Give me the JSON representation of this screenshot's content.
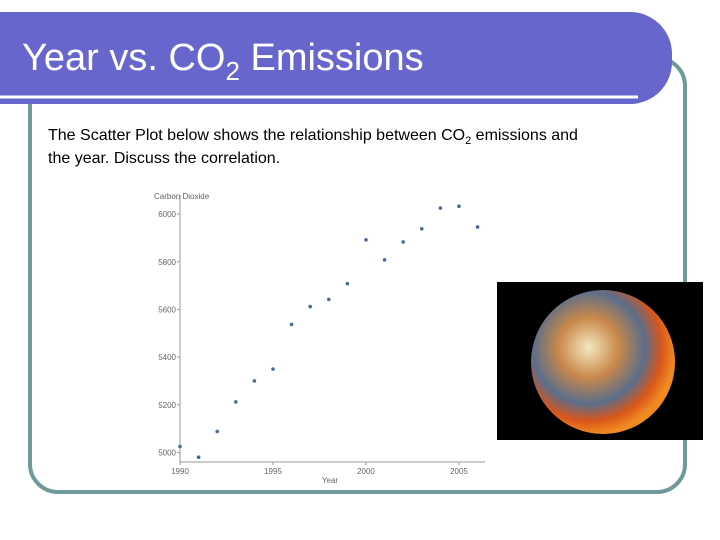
{
  "header": {
    "title_parts": [
      "Year vs. CO",
      "2",
      " Emissions"
    ]
  },
  "body": {
    "line1_parts": [
      "The Scatter Plot below shows the relationship between CO",
      "2",
      " emissions and"
    ],
    "line2": "the year.  Discuss the correlation."
  },
  "chart_data": {
    "type": "scatter",
    "ylabel": "Carbon Dioxide",
    "xlabel": "Year",
    "x": [
      1990,
      1991,
      1992,
      1993,
      1994,
      1995,
      1996,
      1997,
      1998,
      1999,
      2000,
      2001,
      2002,
      2003,
      2004,
      2005,
      2006
    ],
    "values": [
      5025,
      4980,
      5088,
      5212,
      5300,
      5350,
      5537,
      5612,
      5642,
      5708,
      5892,
      5808,
      5883,
      5938,
      6025,
      6033,
      5946
    ],
    "color": "#4a6a9a",
    "xlim": [
      1990,
      2006.4
    ],
    "ylim": [
      4960,
      6080
    ],
    "xticks": [
      1990,
      1995,
      2000,
      2005
    ],
    "yticks": [
      5000,
      5200,
      5400,
      5600,
      5800,
      6000
    ]
  }
}
